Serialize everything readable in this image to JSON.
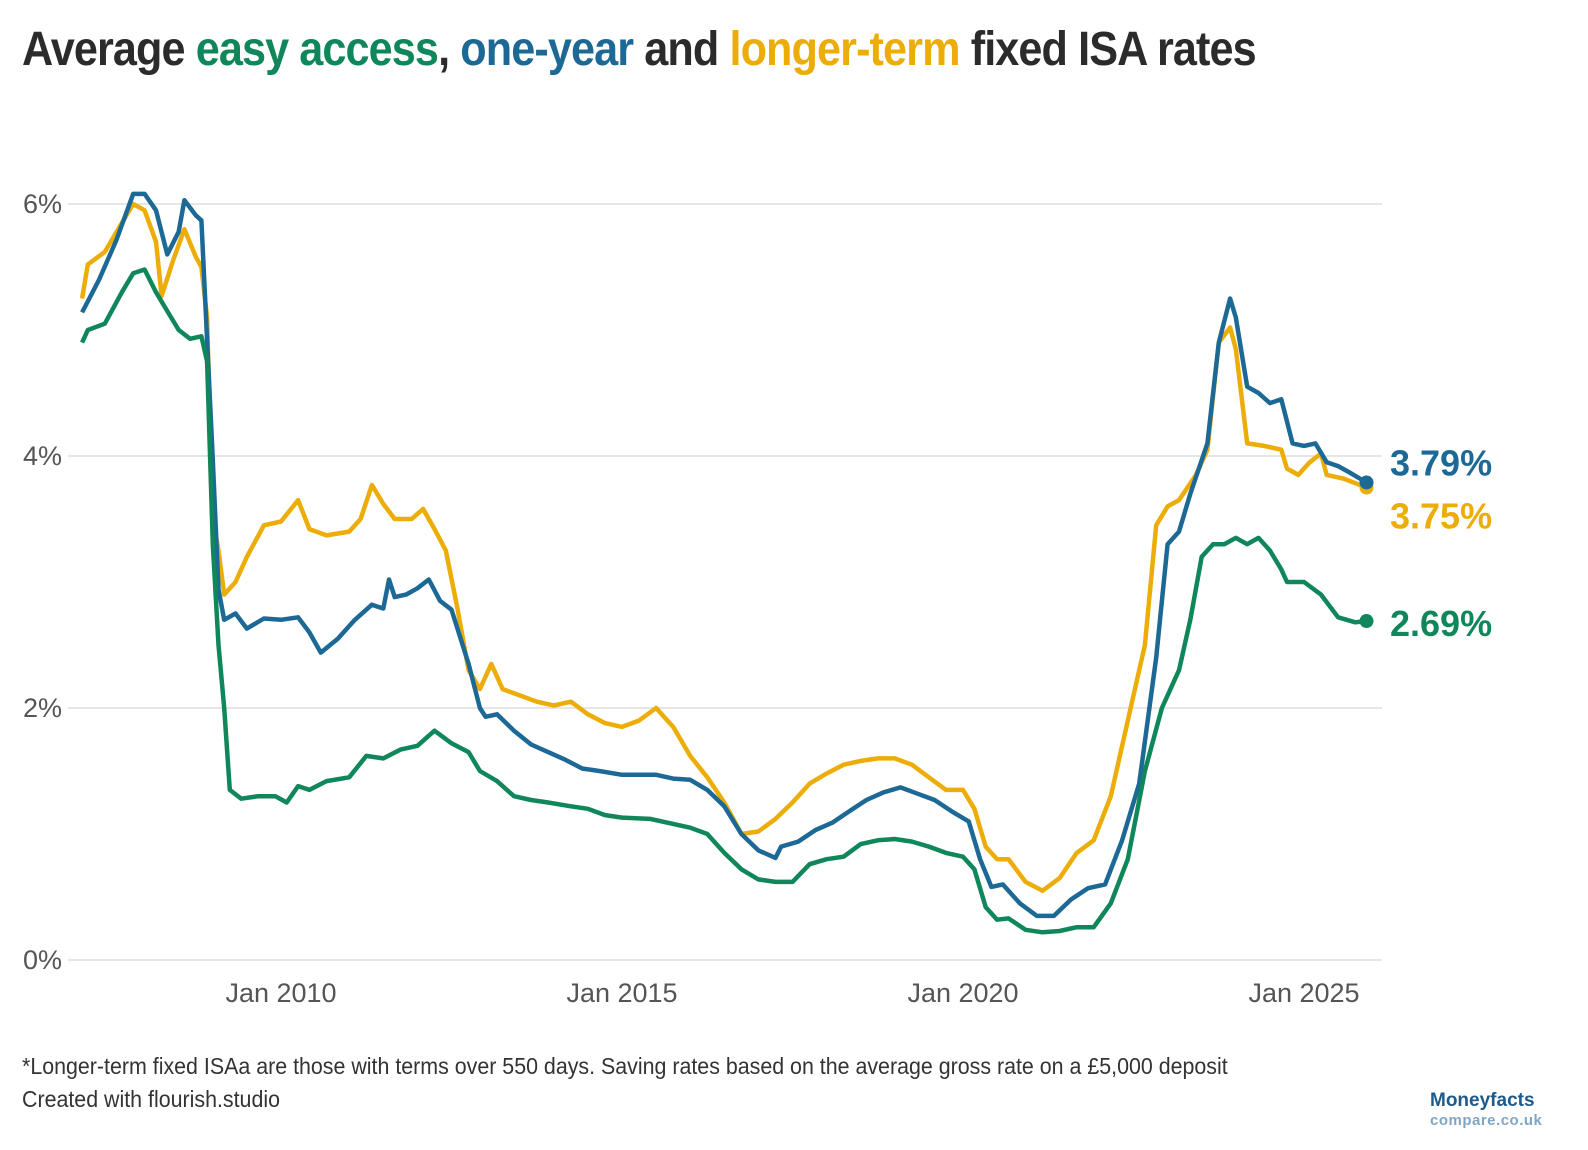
{
  "title": {
    "parts": [
      "Average ",
      "easy access",
      ", ",
      "one-year",
      " and ",
      "longer-term",
      " fixed ISA rates"
    ]
  },
  "colors": {
    "easy_access": "#10875a",
    "one_year": "#1d6996",
    "longer_term": "#edad08",
    "grid": "#e6e6e6",
    "text": "#2b2b2b"
  },
  "footer": {
    "note": "*Longer-term fixed ISAa are those with terms over 550 days. Saving rates based on the average gross rate on a £5,000 deposit",
    "credit": "Created with flourish.studio"
  },
  "logo": {
    "line1": "Moneyfacts",
    "line2": "compare.co.uk"
  },
  "chart_data": {
    "type": "line",
    "title": "Average easy access, one-year and longer-term fixed ISA rates",
    "xlabel": "",
    "ylabel": "",
    "ylim": [
      0,
      6
    ],
    "xlim": [
      "2007-01",
      "2026-01"
    ],
    "grid": true,
    "legend": "none (colored words in title, end labels)",
    "x_ticks": [
      "Jan 2010",
      "Jan 2015",
      "Jan 2020",
      "Jan 2025"
    ],
    "x_tick_dates": [
      "2010-01",
      "2015-01",
      "2020-01",
      "2025-01"
    ],
    "y_ticks": [
      "0%",
      "2%",
      "4%",
      "6%"
    ],
    "y_tick_values": [
      0,
      2,
      4,
      6
    ],
    "series": [
      {
        "name": "longer-term",
        "color": "#edad08",
        "end_label": "3.75%",
        "points": [
          [
            "2007-02",
            5.25
          ],
          [
            "2007-03",
            5.52
          ],
          [
            "2007-06",
            5.62
          ],
          [
            "2007-09",
            5.85
          ],
          [
            "2007-11",
            6.0
          ],
          [
            "2008-01",
            5.95
          ],
          [
            "2008-03",
            5.7
          ],
          [
            "2008-04",
            5.27
          ],
          [
            "2008-06",
            5.55
          ],
          [
            "2008-08",
            5.8
          ],
          [
            "2008-10",
            5.58
          ],
          [
            "2008-11",
            5.5
          ],
          [
            "2008-12",
            5.1
          ],
          [
            "2009-01",
            3.5
          ],
          [
            "2009-02",
            3.25
          ],
          [
            "2009-03",
            2.9
          ],
          [
            "2009-05",
            3.0
          ],
          [
            "2009-07",
            3.2
          ],
          [
            "2009-10",
            3.45
          ],
          [
            "2010-01",
            3.48
          ],
          [
            "2010-04",
            3.65
          ],
          [
            "2010-06",
            3.42
          ],
          [
            "2010-09",
            3.37
          ],
          [
            "2011-01",
            3.4
          ],
          [
            "2011-03",
            3.5
          ],
          [
            "2011-05",
            3.77
          ],
          [
            "2011-07",
            3.62
          ],
          [
            "2011-09",
            3.5
          ],
          [
            "2011-12",
            3.5
          ],
          [
            "2012-02",
            3.58
          ],
          [
            "2012-04",
            3.42
          ],
          [
            "2012-06",
            3.25
          ],
          [
            "2012-08",
            2.8
          ],
          [
            "2012-10",
            2.3
          ],
          [
            "2012-12",
            2.15
          ],
          [
            "2013-02",
            2.35
          ],
          [
            "2013-04",
            2.15
          ],
          [
            "2013-07",
            2.1
          ],
          [
            "2013-10",
            2.05
          ],
          [
            "2014-01",
            2.02
          ],
          [
            "2014-04",
            2.05
          ],
          [
            "2014-07",
            1.95
          ],
          [
            "2014-10",
            1.88
          ],
          [
            "2015-01",
            1.85
          ],
          [
            "2015-04",
            1.9
          ],
          [
            "2015-07",
            2.0
          ],
          [
            "2015-10",
            1.85
          ],
          [
            "2016-01",
            1.62
          ],
          [
            "2016-04",
            1.45
          ],
          [
            "2016-07",
            1.25
          ],
          [
            "2016-10",
            1.0
          ],
          [
            "2017-01",
            1.02
          ],
          [
            "2017-04",
            1.12
          ],
          [
            "2017-07",
            1.25
          ],
          [
            "2017-10",
            1.4
          ],
          [
            "2018-01",
            1.48
          ],
          [
            "2018-04",
            1.55
          ],
          [
            "2018-07",
            1.58
          ],
          [
            "2018-10",
            1.6
          ],
          [
            "2019-01",
            1.6
          ],
          [
            "2019-04",
            1.55
          ],
          [
            "2019-07",
            1.45
          ],
          [
            "2019-10",
            1.35
          ],
          [
            "2020-01",
            1.35
          ],
          [
            "2020-03",
            1.2
          ],
          [
            "2020-05",
            0.9
          ],
          [
            "2020-07",
            0.8
          ],
          [
            "2020-09",
            0.8
          ],
          [
            "2020-12",
            0.62
          ],
          [
            "2021-03",
            0.55
          ],
          [
            "2021-06",
            0.65
          ],
          [
            "2021-09",
            0.85
          ],
          [
            "2021-12",
            0.95
          ],
          [
            "2022-03",
            1.3
          ],
          [
            "2022-06",
            1.9
          ],
          [
            "2022-09",
            2.5
          ],
          [
            "2022-11",
            3.45
          ],
          [
            "2023-01",
            3.6
          ],
          [
            "2023-03",
            3.65
          ],
          [
            "2023-06",
            3.85
          ],
          [
            "2023-08",
            4.05
          ],
          [
            "2023-10",
            4.9
          ],
          [
            "2023-12",
            5.02
          ],
          [
            "2024-01",
            4.85
          ],
          [
            "2024-03",
            4.1
          ],
          [
            "2024-06",
            4.08
          ],
          [
            "2024-09",
            4.05
          ],
          [
            "2024-10",
            3.9
          ],
          [
            "2024-12",
            3.85
          ],
          [
            "2025-02",
            3.95
          ],
          [
            "2025-04",
            4.02
          ],
          [
            "2025-05",
            3.85
          ],
          [
            "2025-08",
            3.82
          ],
          [
            "2025-12",
            3.75
          ]
        ]
      },
      {
        "name": "one-year",
        "color": "#1d6996",
        "end_label": "3.79%",
        "points": [
          [
            "2007-02",
            5.14
          ],
          [
            "2007-05",
            5.4
          ],
          [
            "2007-08",
            5.71
          ],
          [
            "2007-11",
            6.08
          ],
          [
            "2008-01",
            6.08
          ],
          [
            "2008-03",
            5.95
          ],
          [
            "2008-05",
            5.6
          ],
          [
            "2008-07",
            5.78
          ],
          [
            "2008-08",
            6.03
          ],
          [
            "2008-10",
            5.91
          ],
          [
            "2008-11",
            5.87
          ],
          [
            "2009-01",
            3.97
          ],
          [
            "2009-02",
            2.94
          ],
          [
            "2009-03",
            2.7
          ],
          [
            "2009-05",
            2.75
          ],
          [
            "2009-07",
            2.63
          ],
          [
            "2009-10",
            2.71
          ],
          [
            "2010-01",
            2.7
          ],
          [
            "2010-04",
            2.72
          ],
          [
            "2010-06",
            2.6
          ],
          [
            "2010-08",
            2.44
          ],
          [
            "2010-11",
            2.55
          ],
          [
            "2011-02",
            2.7
          ],
          [
            "2011-05",
            2.82
          ],
          [
            "2011-07",
            2.79
          ],
          [
            "2011-08",
            3.02
          ],
          [
            "2011-09",
            2.88
          ],
          [
            "2011-11",
            2.9
          ],
          [
            "2012-01",
            2.95
          ],
          [
            "2012-03",
            3.02
          ],
          [
            "2012-05",
            2.85
          ],
          [
            "2012-07",
            2.78
          ],
          [
            "2012-10",
            2.35
          ],
          [
            "2012-12",
            2.0
          ],
          [
            "2013-01",
            1.93
          ],
          [
            "2013-03",
            1.95
          ],
          [
            "2013-06",
            1.82
          ],
          [
            "2013-09",
            1.71
          ],
          [
            "2013-12",
            1.65
          ],
          [
            "2014-03",
            1.59
          ],
          [
            "2014-06",
            1.52
          ],
          [
            "2014-09",
            1.5
          ],
          [
            "2015-01",
            1.47
          ],
          [
            "2015-04",
            1.47
          ],
          [
            "2015-07",
            1.47
          ],
          [
            "2015-10",
            1.44
          ],
          [
            "2016-01",
            1.43
          ],
          [
            "2016-04",
            1.35
          ],
          [
            "2016-07",
            1.22
          ],
          [
            "2016-10",
            1.0
          ],
          [
            "2017-01",
            0.87
          ],
          [
            "2017-04",
            0.81
          ],
          [
            "2017-05",
            0.9
          ],
          [
            "2017-08",
            0.94
          ],
          [
            "2017-11",
            1.03
          ],
          [
            "2018-02",
            1.09
          ],
          [
            "2018-05",
            1.18
          ],
          [
            "2018-08",
            1.27
          ],
          [
            "2018-11",
            1.33
          ],
          [
            "2019-02",
            1.37
          ],
          [
            "2019-05",
            1.32
          ],
          [
            "2019-08",
            1.27
          ],
          [
            "2019-11",
            1.18
          ],
          [
            "2020-02",
            1.1
          ],
          [
            "2020-04",
            0.8
          ],
          [
            "2020-06",
            0.58
          ],
          [
            "2020-08",
            0.6
          ],
          [
            "2020-11",
            0.45
          ],
          [
            "2021-02",
            0.35
          ],
          [
            "2021-05",
            0.35
          ],
          [
            "2021-08",
            0.48
          ],
          [
            "2021-11",
            0.57
          ],
          [
            "2022-02",
            0.6
          ],
          [
            "2022-05",
            0.95
          ],
          [
            "2022-08",
            1.4
          ],
          [
            "2022-11",
            2.4
          ],
          [
            "2023-01",
            3.3
          ],
          [
            "2023-03",
            3.4
          ],
          [
            "2023-05",
            3.7
          ],
          [
            "2023-08",
            4.1
          ],
          [
            "2023-10",
            4.9
          ],
          [
            "2023-12",
            5.25
          ],
          [
            "2024-01",
            5.1
          ],
          [
            "2024-03",
            4.55
          ],
          [
            "2024-05",
            4.5
          ],
          [
            "2024-07",
            4.42
          ],
          [
            "2024-09",
            4.45
          ],
          [
            "2024-11",
            4.1
          ],
          [
            "2025-01",
            4.08
          ],
          [
            "2025-03",
            4.1
          ],
          [
            "2025-05",
            3.95
          ],
          [
            "2025-07",
            3.92
          ],
          [
            "2025-09",
            3.87
          ],
          [
            "2025-12",
            3.79
          ]
        ]
      },
      {
        "name": "easy access",
        "color": "#10875a",
        "end_label": "2.69%",
        "points": [
          [
            "2007-02",
            4.9
          ],
          [
            "2007-03",
            5.0
          ],
          [
            "2007-06",
            5.05
          ],
          [
            "2007-09",
            5.3
          ],
          [
            "2007-11",
            5.45
          ],
          [
            "2008-01",
            5.48
          ],
          [
            "2008-03",
            5.3
          ],
          [
            "2008-05",
            5.15
          ],
          [
            "2008-07",
            5.0
          ],
          [
            "2008-09",
            4.93
          ],
          [
            "2008-11",
            4.95
          ],
          [
            "2008-12",
            4.75
          ],
          [
            "2009-01",
            3.3
          ],
          [
            "2009-02",
            2.5
          ],
          [
            "2009-03",
            2.0
          ],
          [
            "2009-04",
            1.35
          ],
          [
            "2009-06",
            1.28
          ],
          [
            "2009-09",
            1.3
          ],
          [
            "2009-12",
            1.3
          ],
          [
            "2010-02",
            1.25
          ],
          [
            "2010-04",
            1.38
          ],
          [
            "2010-06",
            1.35
          ],
          [
            "2010-09",
            1.42
          ],
          [
            "2011-01",
            1.45
          ],
          [
            "2011-04",
            1.62
          ],
          [
            "2011-07",
            1.6
          ],
          [
            "2011-10",
            1.67
          ],
          [
            "2012-01",
            1.7
          ],
          [
            "2012-04",
            1.82
          ],
          [
            "2012-07",
            1.72
          ],
          [
            "2012-10",
            1.65
          ],
          [
            "2012-12",
            1.5
          ],
          [
            "2013-03",
            1.42
          ],
          [
            "2013-06",
            1.3
          ],
          [
            "2013-09",
            1.27
          ],
          [
            "2013-12",
            1.25
          ],
          [
            "2014-04",
            1.22
          ],
          [
            "2014-07",
            1.2
          ],
          [
            "2014-10",
            1.15
          ],
          [
            "2015-01",
            1.13
          ],
          [
            "2015-06",
            1.12
          ],
          [
            "2015-10",
            1.08
          ],
          [
            "2016-01",
            1.05
          ],
          [
            "2016-04",
            1.0
          ],
          [
            "2016-07",
            0.85
          ],
          [
            "2016-10",
            0.72
          ],
          [
            "2017-01",
            0.64
          ],
          [
            "2017-04",
            0.62
          ],
          [
            "2017-07",
            0.62
          ],
          [
            "2017-10",
            0.76
          ],
          [
            "2018-01",
            0.8
          ],
          [
            "2018-04",
            0.82
          ],
          [
            "2018-07",
            0.92
          ],
          [
            "2018-10",
            0.95
          ],
          [
            "2019-01",
            0.96
          ],
          [
            "2019-04",
            0.94
          ],
          [
            "2019-07",
            0.9
          ],
          [
            "2019-10",
            0.85
          ],
          [
            "2020-01",
            0.82
          ],
          [
            "2020-03",
            0.72
          ],
          [
            "2020-05",
            0.42
          ],
          [
            "2020-07",
            0.32
          ],
          [
            "2020-09",
            0.33
          ],
          [
            "2020-12",
            0.24
          ],
          [
            "2021-03",
            0.22
          ],
          [
            "2021-06",
            0.23
          ],
          [
            "2021-09",
            0.26
          ],
          [
            "2021-12",
            0.26
          ],
          [
            "2022-03",
            0.45
          ],
          [
            "2022-06",
            0.8
          ],
          [
            "2022-09",
            1.5
          ],
          [
            "2022-12",
            2.0
          ],
          [
            "2023-03",
            2.3
          ],
          [
            "2023-05",
            2.7
          ],
          [
            "2023-07",
            3.2
          ],
          [
            "2023-09",
            3.3
          ],
          [
            "2023-11",
            3.3
          ],
          [
            "2024-01",
            3.35
          ],
          [
            "2024-03",
            3.3
          ],
          [
            "2024-05",
            3.35
          ],
          [
            "2024-07",
            3.25
          ],
          [
            "2024-09",
            3.1
          ],
          [
            "2024-10",
            3.0
          ],
          [
            "2025-01",
            3.0
          ],
          [
            "2025-04",
            2.9
          ],
          [
            "2025-07",
            2.72
          ],
          [
            "2025-10",
            2.68
          ],
          [
            "2025-12",
            2.69
          ]
        ]
      }
    ]
  }
}
